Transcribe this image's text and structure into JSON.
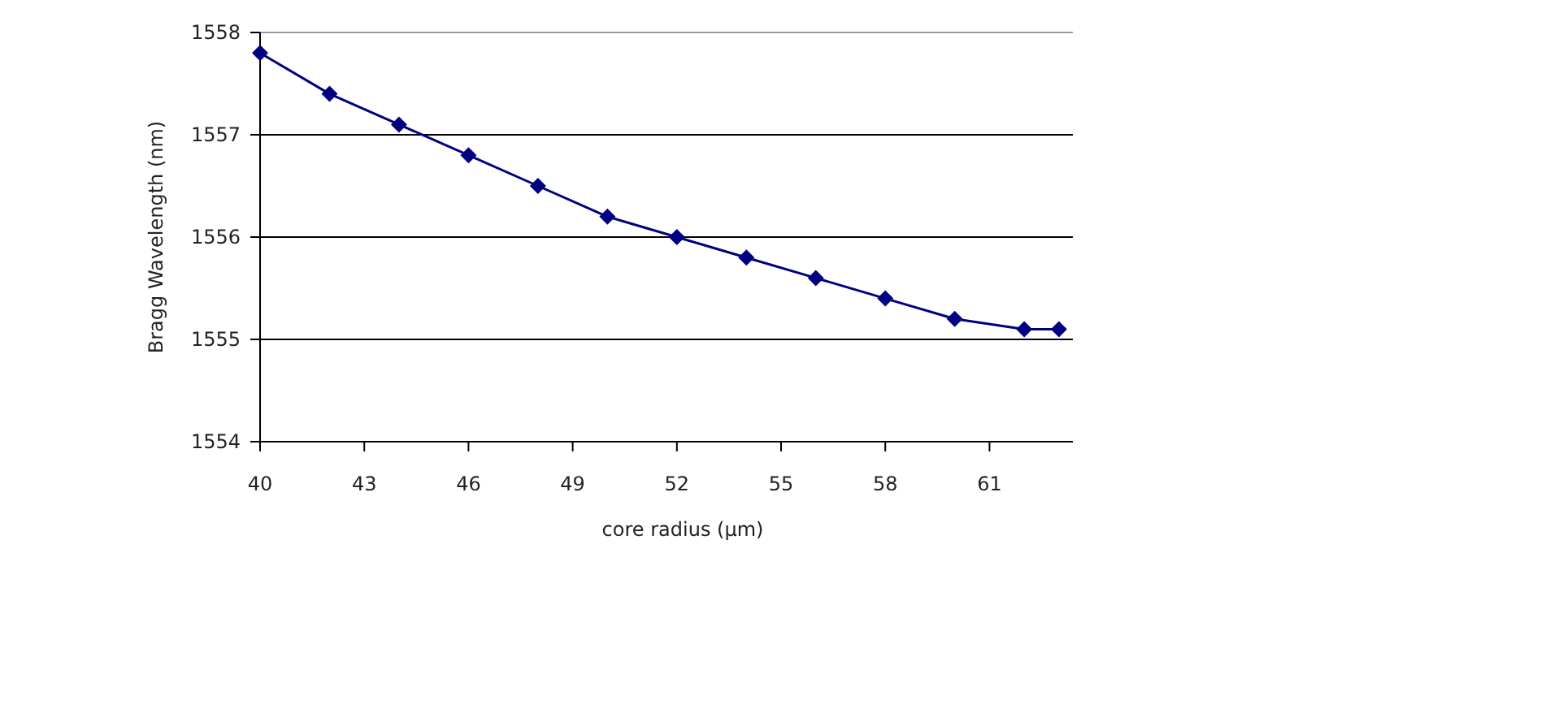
{
  "chart_data": {
    "type": "line",
    "xlabel": "core radius  (μm)",
    "ylabel": "Bragg Wavelength (nm)",
    "x": [
      40,
      42,
      44,
      46,
      48,
      50,
      52,
      54,
      56,
      58,
      60,
      62,
      63
    ],
    "series": [
      {
        "color": "#000080",
        "values": [
          1557.8,
          1557.4,
          1557.1,
          1556.8,
          1556.5,
          1556.2,
          1556.0,
          1555.8,
          1555.6,
          1555.4,
          1555.2,
          1555.1,
          1555.1
        ]
      }
    ],
    "xlim": [
      40,
      63.4
    ],
    "xticks": [
      40,
      43,
      46,
      49,
      52,
      55,
      58,
      61
    ],
    "ylim": [
      1554,
      1558
    ],
    "yticks": [
      1554,
      1555,
      1556,
      1557,
      1558
    ],
    "grid": "y",
    "marker": "diamond",
    "line_style": "solid"
  }
}
